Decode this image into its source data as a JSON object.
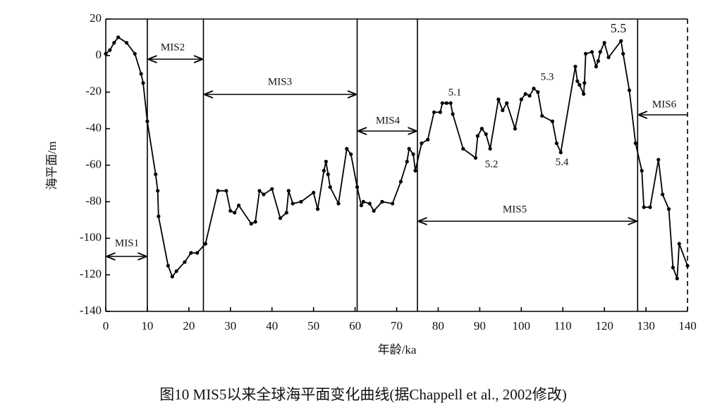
{
  "chart_data": {
    "type": "line",
    "x_label": "年龄/ka",
    "y_label": "海平面/m",
    "caption": "图10 MIS5以来全球海平面变化曲线(据Chappell et al., 2002修改)",
    "xlim": [
      0,
      140
    ],
    "ylim": [
      -140,
      20
    ],
    "xticks": [
      0,
      10,
      20,
      30,
      40,
      50,
      60,
      70,
      80,
      90,
      100,
      110,
      120,
      130,
      140
    ],
    "yticks": [
      -140,
      -120,
      -100,
      -80,
      -60,
      -40,
      -20,
      0,
      20
    ],
    "color": "#000000",
    "x": [
      0,
      1,
      2,
      3,
      5,
      7,
      8.5,
      9,
      10,
      12,
      12.5,
      12.7,
      15,
      16,
      17,
      19,
      20.5,
      22,
      24,
      27,
      29,
      30,
      31,
      32,
      35,
      36,
      37,
      38,
      40,
      42,
      43.5,
      44,
      45,
      47,
      50,
      51,
      52.5,
      53,
      53.5,
      54,
      56,
      58,
      59,
      60.5,
      61.5,
      62,
      63.5,
      64.5,
      66.5,
      69,
      71,
      72.5,
      73,
      74,
      74.5,
      76,
      77.5,
      79,
      80.5,
      81,
      82,
      83,
      83.5,
      86,
      89,
      89.5,
      90.5,
      91.5,
      92.5,
      94.5,
      95.5,
      96.5,
      98.5,
      100,
      101,
      102,
      103,
      104,
      105,
      107.5,
      108.5,
      109.5,
      113,
      113.5,
      114,
      115,
      115.2,
      115.5,
      117,
      118,
      118.5,
      119,
      120,
      121,
      124,
      124.5,
      126,
      127.5,
      129,
      129.5,
      131,
      133,
      134,
      135.5,
      136.5,
      137.5,
      138,
      140
    ],
    "values": [
      1,
      3,
      7,
      10,
      7,
      1,
      -10,
      -15,
      -36,
      -65,
      -74,
      -88,
      -115,
      -121,
      -118,
      -113,
      -108,
      -108,
      -103,
      -74,
      -74,
      -85,
      -86,
      -82,
      -92,
      -91,
      -74,
      -76,
      -73,
      -89,
      -86,
      -74,
      -81,
      -80,
      -75,
      -84,
      -63,
      -58,
      -65,
      -72,
      -81,
      -51,
      -54,
      -72,
      -82,
      -80,
      -81,
      -85,
      -80,
      -81,
      -69,
      -58,
      -51,
      -54,
      -63,
      -48,
      -46,
      -31,
      -31,
      -26,
      -26,
      -26,
      -32,
      -51,
      -56,
      -44,
      -40,
      -43,
      -51,
      -24,
      -30,
      -26,
      -40,
      -24,
      -21,
      -22,
      -18,
      -20,
      -33,
      -36,
      -48,
      -53,
      -6,
      -14,
      -16,
      -21,
      -15,
      1,
      2,
      -6,
      -3,
      2,
      7,
      -1,
      8,
      1,
      -19,
      -48,
      -63,
      -83,
      -83,
      -57,
      -76,
      -84,
      -116,
      -122,
      -103,
      -115
    ],
    "boundaries": [
      10,
      23.5,
      60.5,
      75,
      128
    ],
    "stages": [
      "MIS1",
      "MIS2",
      "MIS3",
      "MIS4",
      "MIS5",
      "MIS6"
    ],
    "substages": [
      "5.1",
      "5.2",
      "5.3",
      "5.4",
      "5.5"
    ]
  }
}
